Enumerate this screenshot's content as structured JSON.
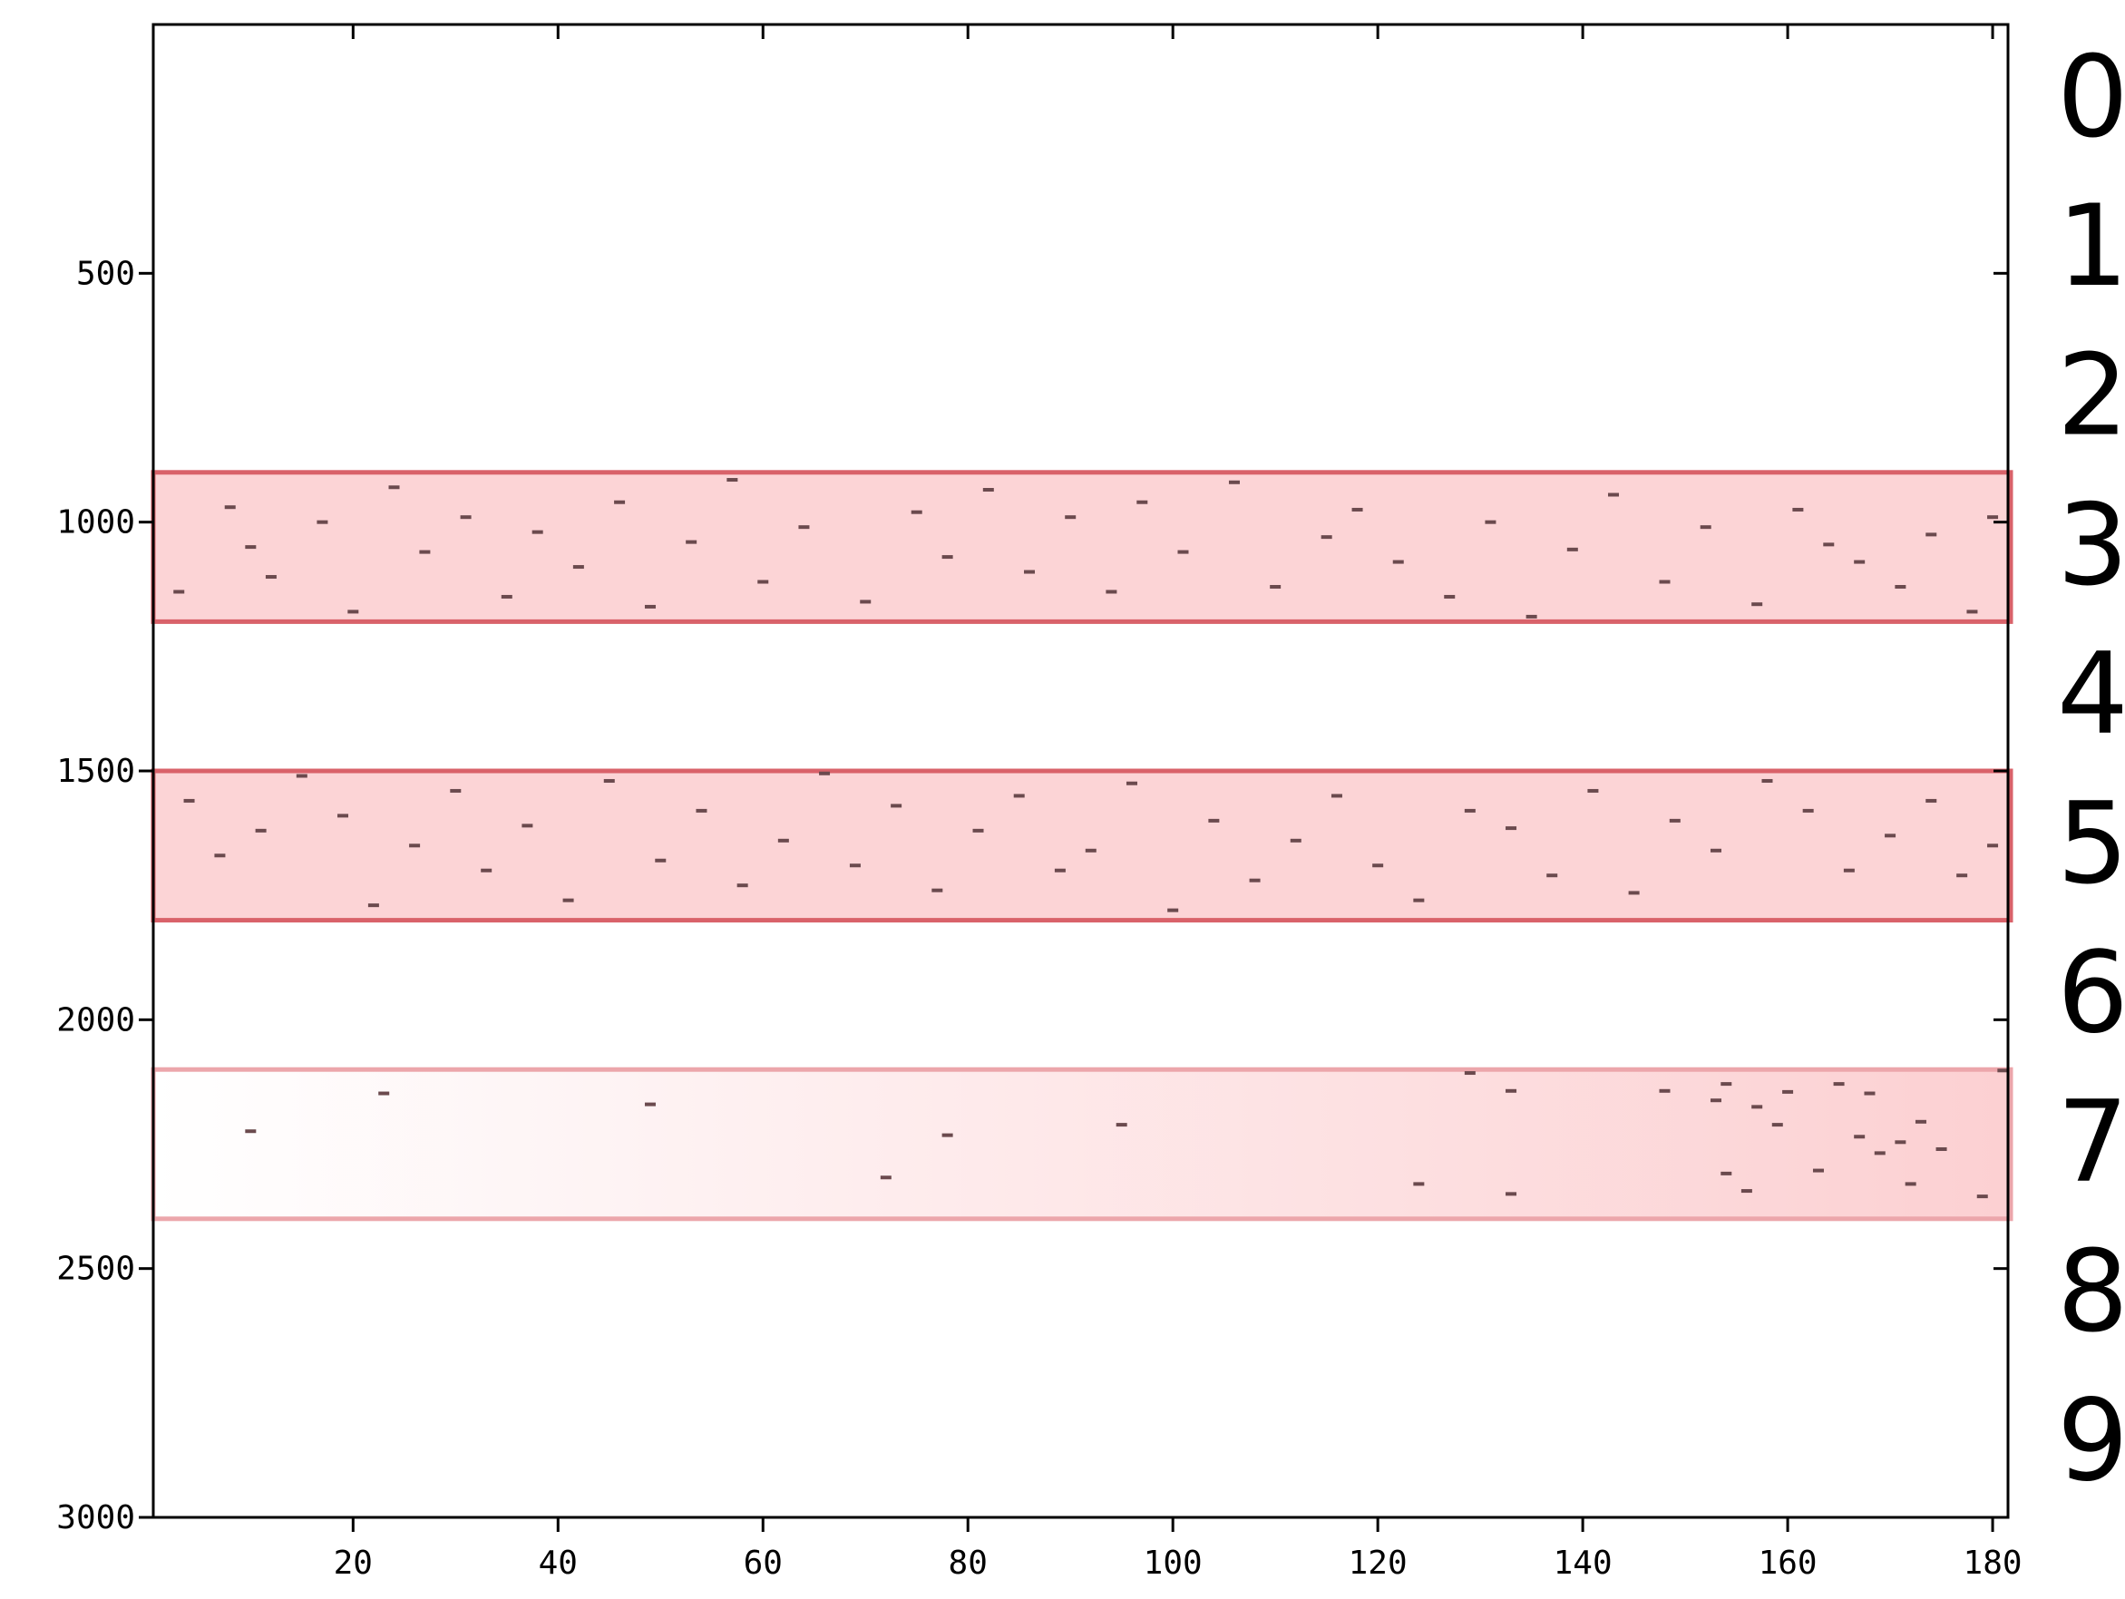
{
  "chart_data": {
    "type": "raster",
    "xlim": [
      0.5,
      181.5
    ],
    "ylim": [
      0,
      3000
    ],
    "y_inverted": true,
    "xticks": [
      20,
      40,
      60,
      80,
      100,
      120,
      140,
      160,
      180
    ],
    "yticks": [
      500,
      1000,
      1500,
      2000,
      2500,
      3000
    ],
    "row_labels": [
      "0",
      "1",
      "2",
      "3",
      "4",
      "5",
      "6",
      "7",
      "8",
      "9"
    ],
    "highlights": [
      {
        "ylim": [
          900,
          1200
        ],
        "fill": "#fcd4d6",
        "stroke": "#d9626a"
      },
      {
        "ylim": [
          1500,
          1800
        ],
        "fill": "#fcd4d6",
        "stroke": "#d9626a"
      },
      {
        "ylim": [
          2100,
          2400
        ],
        "fill": "#ffffff",
        "fill_to": "#fcd0d2",
        "stroke": "#eca6ab"
      }
    ],
    "series": [
      {
        "color": "#6b4a4e",
        "x": [
          3,
          8,
          10,
          12,
          17,
          20,
          24,
          27,
          31,
          35,
          38,
          42,
          46,
          49,
          53,
          57,
          60,
          64,
          70,
          75,
          78,
          82,
          86,
          90,
          94,
          97,
          101,
          106,
          110,
          115,
          118,
          122,
          127,
          131,
          135,
          139,
          143,
          148,
          152,
          157,
          161,
          164,
          167,
          171,
          174,
          178,
          180
        ],
        "y": [
          1140,
          970,
          1050,
          1110,
          1000,
          1180,
          930,
          1060,
          990,
          1150,
          1020,
          1090,
          960,
          1170,
          1040,
          915,
          1120,
          1010,
          1160,
          980,
          1070,
          935,
          1100,
          990,
          1140,
          960,
          1060,
          920,
          1130,
          1030,
          975,
          1080,
          1150,
          1000,
          1190,
          1055,
          945,
          1120,
          1010,
          1165,
          975,
          1045,
          1080,
          1130,
          1025,
          1180,
          990
        ]
      },
      {
        "color": "#6b4a4e",
        "x": [
          4,
          7,
          11,
          15,
          19,
          22,
          26,
          30,
          33,
          37,
          41,
          45,
          50,
          54,
          58,
          62,
          66,
          69,
          73,
          77,
          81,
          85,
          89,
          92,
          96,
          100,
          104,
          108,
          112,
          116,
          120,
          124,
          129,
          133,
          137,
          141,
          145,
          149,
          153,
          158,
          162,
          166,
          170,
          174,
          177,
          180
        ],
        "y": [
          1560,
          1670,
          1620,
          1510,
          1590,
          1770,
          1650,
          1540,
          1700,
          1610,
          1760,
          1520,
          1680,
          1580,
          1730,
          1640,
          1505,
          1690,
          1570,
          1740,
          1620,
          1550,
          1700,
          1660,
          1525,
          1780,
          1600,
          1720,
          1640,
          1550,
          1690,
          1760,
          1580,
          1615,
          1710,
          1540,
          1745,
          1600,
          1660,
          1520,
          1580,
          1700,
          1630,
          1560,
          1710,
          1650
        ]
      },
      {
        "color": "#6b4a4e",
        "x": [
          10,
          23,
          49,
          72,
          78,
          95,
          124,
          129,
          133,
          133,
          148,
          153,
          154,
          154,
          156,
          157,
          159,
          160,
          163,
          165,
          167,
          168,
          169,
          171,
          172,
          173,
          175,
          179,
          181
        ],
        "y": [
          2224,
          2148,
          2170,
          2317,
          2232,
          2211,
          2330,
          2107,
          2143,
          2350,
          2143,
          2162,
          2129,
          2309,
          2344,
          2175,
          2211,
          2145,
          2303,
          2129,
          2235,
          2148,
          2268,
          2246,
          2330,
          2205,
          2260,
          2355,
          2102
        ]
      }
    ]
  }
}
